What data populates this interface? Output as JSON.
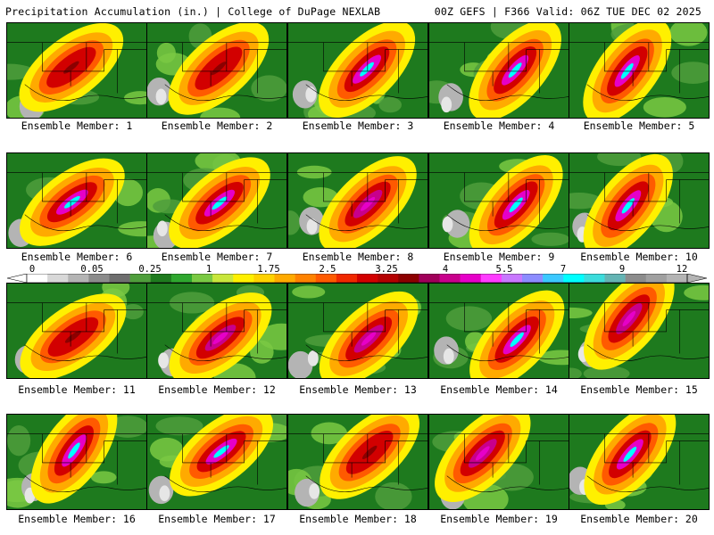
{
  "header": {
    "title": "Precipitation Accumulation (in.) | College of DuPage NEXLAB",
    "run_info": "00Z GEFS | F366 Valid: 06Z TUE DEC 02 2025"
  },
  "members": [
    {
      "label": "Ensemble Member: 1",
      "peak": "red"
    },
    {
      "label": "Ensemble Member: 2",
      "peak": "red"
    },
    {
      "label": "Ensemble Member: 3",
      "peak": "cyan"
    },
    {
      "label": "Ensemble Member: 4",
      "peak": "cyan"
    },
    {
      "label": "Ensemble Member: 5",
      "peak": "cyan"
    },
    {
      "label": "Ensemble Member: 6",
      "peak": "cyan"
    },
    {
      "label": "Ensemble Member: 7",
      "peak": "cyan"
    },
    {
      "label": "Ensemble Member: 8",
      "peak": "magenta"
    },
    {
      "label": "Ensemble Member: 9",
      "peak": "cyan"
    },
    {
      "label": "Ensemble Member: 10",
      "peak": "cyan"
    },
    {
      "label": "Ensemble Member: 11",
      "peak": "red"
    },
    {
      "label": "Ensemble Member: 12",
      "peak": "magenta"
    },
    {
      "label": "Ensemble Member: 13",
      "peak": "magenta"
    },
    {
      "label": "Ensemble Member: 14",
      "peak": "cyan"
    },
    {
      "label": "Ensemble Member: 15",
      "peak": "magenta"
    },
    {
      "label": "Ensemble Member: 16",
      "peak": "cyan"
    },
    {
      "label": "Ensemble Member: 17",
      "peak": "cyan"
    },
    {
      "label": "Ensemble Member: 18",
      "peak": "red"
    },
    {
      "label": "Ensemble Member: 19",
      "peak": "magenta"
    },
    {
      "label": "Ensemble Member: 20",
      "peak": "cyan"
    }
  ],
  "colorbar": {
    "tick_labels": [
      "0",
      "0.05",
      "0.25",
      "1",
      "1.75",
      "2.5",
      "3.25",
      "4",
      "5.5",
      "7",
      "9",
      "12"
    ],
    "colors": [
      "#ffffff",
      "#d8d8d8",
      "#b4b4b4",
      "#8c8c8c",
      "#6e6e6e",
      "#4f9e3c",
      "#1e7a1e",
      "#2fa72f",
      "#7ac943",
      "#c8e63c",
      "#fff000",
      "#ffd200",
      "#ffaa00",
      "#ff8200",
      "#ff5a00",
      "#f02800",
      "#d20000",
      "#b40000",
      "#8c0000",
      "#a0005a",
      "#c8008c",
      "#e600c8",
      "#ff3cff",
      "#c878ff",
      "#8c8cff",
      "#3cc8ff",
      "#00ffff",
      "#3cdcdc",
      "#64b4b4",
      "#8c8c8c",
      "#a0a0a0",
      "#b4b4b4"
    ],
    "unit_hint": "in."
  }
}
